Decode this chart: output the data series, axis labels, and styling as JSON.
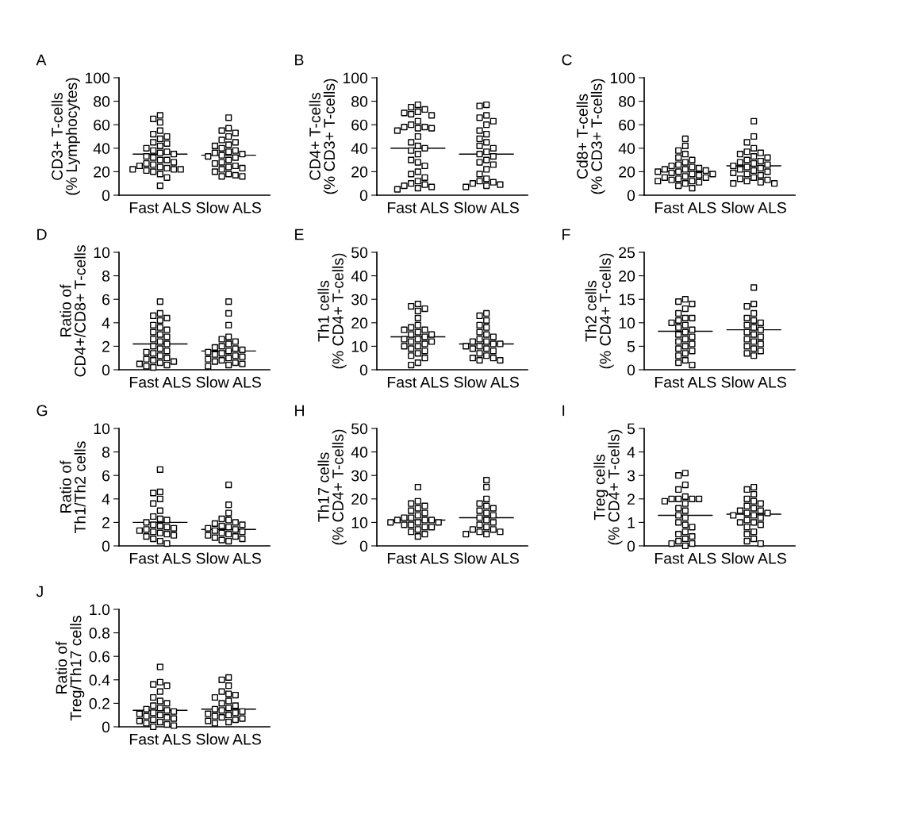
{
  "chart_data": [
    {
      "type": "scatter",
      "title": "A",
      "ylabel": "CD3+ T-cells\n(% Lymphocytes)",
      "categories": [
        "Fast ALS",
        "Slow ALS"
      ],
      "ylim": [
        0,
        100
      ],
      "yticks": [
        0,
        20,
        40,
        60,
        80,
        100
      ],
      "marker": "square",
      "grid": false,
      "ref_lines": [
        {
          "axis": "y",
          "value": 35,
          "color": "#000000"
        },
        {
          "axis": "y",
          "value": 34,
          "color": "#000000"
        }
      ],
      "series": [
        {
          "color": "#000000",
          "x": [
            "Fast ALS",
            "Fast ALS",
            "Fast ALS",
            "Fast ALS",
            "Fast ALS",
            "Fast ALS",
            "Fast ALS",
            "Fast ALS",
            "Fast ALS",
            "Fast ALS",
            "Fast ALS",
            "Fast ALS",
            "Fast ALS",
            "Fast ALS",
            "Fast ALS",
            "Fast ALS",
            "Fast ALS",
            "Fast ALS",
            "Fast ALS",
            "Fast ALS",
            "Fast ALS",
            "Fast ALS",
            "Fast ALS",
            "Fast ALS",
            "Fast ALS",
            "Fast ALS",
            "Fast ALS",
            "Fast ALS",
            "Fast ALS",
            "Fast ALS",
            "Fast ALS",
            "Fast ALS",
            "Fast ALS"
          ],
          "values": [
            68,
            65,
            62,
            55,
            52,
            50,
            48,
            45,
            44,
            42,
            40,
            38,
            37,
            36,
            35,
            33,
            32,
            30,
            30,
            28,
            27,
            26,
            25,
            24,
            23,
            22,
            22,
            22,
            21,
            20,
            18,
            15,
            8
          ]
        },
        {
          "color": "#000000",
          "x": [
            "Slow ALS",
            "Slow ALS",
            "Slow ALS",
            "Slow ALS",
            "Slow ALS",
            "Slow ALS",
            "Slow ALS",
            "Slow ALS",
            "Slow ALS",
            "Slow ALS",
            "Slow ALS",
            "Slow ALS",
            "Slow ALS",
            "Slow ALS",
            "Slow ALS",
            "Slow ALS",
            "Slow ALS",
            "Slow ALS",
            "Slow ALS",
            "Slow ALS",
            "Slow ALS",
            "Slow ALS",
            "Slow ALS",
            "Slow ALS",
            "Slow ALS",
            "Slow ALS",
            "Slow ALS",
            "Slow ALS",
            "Slow ALS"
          ],
          "values": [
            66,
            57,
            55,
            53,
            50,
            47,
            45,
            43,
            42,
            40,
            38,
            37,
            36,
            35,
            34,
            33,
            32,
            30,
            28,
            27,
            25,
            24,
            23,
            22,
            20,
            18,
            17,
            16,
            16
          ]
        }
      ]
    },
    {
      "type": "scatter",
      "title": "B",
      "ylabel": "CD4+ T-cells\n(% CD3+ T-cells)",
      "categories": [
        "Fast ALS",
        "Slow ALS"
      ],
      "ylim": [
        0,
        100
      ],
      "yticks": [
        0,
        20,
        40,
        60,
        80,
        100
      ],
      "marker": "square",
      "grid": false,
      "ref_lines": [
        {
          "axis": "y",
          "value": 40,
          "color": "#000000"
        },
        {
          "axis": "y",
          "value": 35,
          "color": "#000000"
        }
      ],
      "series": [
        {
          "color": "#000000",
          "x": [
            "Fast ALS",
            "Fast ALS",
            "Fast ALS",
            "Fast ALS",
            "Fast ALS",
            "Fast ALS",
            "Fast ALS",
            "Fast ALS",
            "Fast ALS",
            "Fast ALS",
            "Fast ALS",
            "Fast ALS",
            "Fast ALS",
            "Fast ALS",
            "Fast ALS",
            "Fast ALS",
            "Fast ALS",
            "Fast ALS",
            "Fast ALS",
            "Fast ALS",
            "Fast ALS",
            "Fast ALS",
            "Fast ALS",
            "Fast ALS",
            "Fast ALS",
            "Fast ALS",
            "Fast ALS",
            "Fast ALS",
            "Fast ALS",
            "Fast ALS",
            "Fast ALS",
            "Fast ALS",
            "Fast ALS"
          ],
          "values": [
            77,
            75,
            73,
            71,
            70,
            69,
            68,
            63,
            60,
            58,
            58,
            57,
            57,
            55,
            50,
            45,
            42,
            40,
            38,
            35,
            30,
            28,
            25,
            20,
            18,
            15,
            12,
            10,
            9,
            8,
            7,
            6,
            5
          ]
        },
        {
          "color": "#000000",
          "x": [
            "Slow ALS",
            "Slow ALS",
            "Slow ALS",
            "Slow ALS",
            "Slow ALS",
            "Slow ALS",
            "Slow ALS",
            "Slow ALS",
            "Slow ALS",
            "Slow ALS",
            "Slow ALS",
            "Slow ALS",
            "Slow ALS",
            "Slow ALS",
            "Slow ALS",
            "Slow ALS",
            "Slow ALS",
            "Slow ALS",
            "Slow ALS",
            "Slow ALS",
            "Slow ALS",
            "Slow ALS",
            "Slow ALS",
            "Slow ALS",
            "Slow ALS",
            "Slow ALS",
            "Slow ALS"
          ],
          "values": [
            77,
            76,
            68,
            66,
            63,
            60,
            55,
            52,
            48,
            45,
            42,
            40,
            37,
            35,
            33,
            30,
            28,
            26,
            22,
            18,
            14,
            12,
            11,
            10,
            9,
            8,
            7
          ]
        }
      ]
    },
    {
      "type": "scatter",
      "title": "C",
      "ylabel": "Cd8+ T-cells\n(% CD3+ T-cells)",
      "categories": [
        "Fast ALS",
        "Slow ALS"
      ],
      "ylim": [
        0,
        100
      ],
      "yticks": [
        0,
        20,
        40,
        60,
        80,
        100
      ],
      "marker": "square",
      "grid": false,
      "ref_lines": [
        {
          "axis": "y",
          "value": 20,
          "color": "#000000"
        },
        {
          "axis": "y",
          "value": 25,
          "color": "#000000"
        }
      ],
      "series": [
        {
          "color": "#000000",
          "x": [
            "Fast ALS",
            "Fast ALS",
            "Fast ALS",
            "Fast ALS",
            "Fast ALS",
            "Fast ALS",
            "Fast ALS",
            "Fast ALS",
            "Fast ALS",
            "Fast ALS",
            "Fast ALS",
            "Fast ALS",
            "Fast ALS",
            "Fast ALS",
            "Fast ALS",
            "Fast ALS",
            "Fast ALS",
            "Fast ALS",
            "Fast ALS",
            "Fast ALS",
            "Fast ALS",
            "Fast ALS",
            "Fast ALS",
            "Fast ALS",
            "Fast ALS",
            "Fast ALS",
            "Fast ALS",
            "Fast ALS",
            "Fast ALS",
            "Fast ALS",
            "Fast ALS"
          ],
          "values": [
            48,
            42,
            38,
            35,
            32,
            30,
            28,
            26,
            25,
            24,
            23,
            22,
            22,
            21,
            20,
            20,
            19,
            18,
            18,
            17,
            16,
            15,
            15,
            14,
            13,
            12,
            12,
            11,
            10,
            8,
            6
          ]
        },
        {
          "color": "#000000",
          "x": [
            "Slow ALS",
            "Slow ALS",
            "Slow ALS",
            "Slow ALS",
            "Slow ALS",
            "Slow ALS",
            "Slow ALS",
            "Slow ALS",
            "Slow ALS",
            "Slow ALS",
            "Slow ALS",
            "Slow ALS",
            "Slow ALS",
            "Slow ALS",
            "Slow ALS",
            "Slow ALS",
            "Slow ALS",
            "Slow ALS",
            "Slow ALS",
            "Slow ALS",
            "Slow ALS",
            "Slow ALS",
            "Slow ALS",
            "Slow ALS",
            "Slow ALS",
            "Slow ALS",
            "Slow ALS",
            "Slow ALS",
            "Slow ALS",
            "Slow ALS"
          ],
          "values": [
            63,
            50,
            45,
            40,
            37,
            36,
            35,
            33,
            32,
            30,
            29,
            28,
            27,
            26,
            25,
            24,
            23,
            22,
            21,
            20,
            19,
            18,
            17,
            15,
            14,
            13,
            12,
            11,
            10,
            10
          ]
        }
      ]
    },
    {
      "type": "scatter",
      "title": "D",
      "ylabel": "Ratio of\nCD4+/CD8+ T-cells",
      "categories": [
        "Fast ALS",
        "Slow ALS"
      ],
      "ylim": [
        0,
        10
      ],
      "yticks": [
        0,
        2,
        4,
        6,
        8,
        10
      ],
      "marker": "square",
      "grid": false,
      "ref_lines": [
        {
          "axis": "y",
          "value": 2.2,
          "color": "#000000"
        },
        {
          "axis": "y",
          "value": 1.6,
          "color": "#000000"
        }
      ],
      "series": [
        {
          "color": "#000000",
          "x": [
            "Fast ALS",
            "Fast ALS",
            "Fast ALS",
            "Fast ALS",
            "Fast ALS",
            "Fast ALS",
            "Fast ALS",
            "Fast ALS",
            "Fast ALS",
            "Fast ALS",
            "Fast ALS",
            "Fast ALS",
            "Fast ALS",
            "Fast ALS",
            "Fast ALS",
            "Fast ALS",
            "Fast ALS",
            "Fast ALS",
            "Fast ALS",
            "Fast ALS",
            "Fast ALS",
            "Fast ALS",
            "Fast ALS",
            "Fast ALS",
            "Fast ALS",
            "Fast ALS",
            "Fast ALS",
            "Fast ALS",
            "Fast ALS"
          ],
          "values": [
            5.8,
            4.8,
            4.6,
            4.4,
            4.2,
            3.8,
            3.6,
            3.4,
            3.2,
            3.0,
            2.8,
            2.6,
            2.4,
            2.2,
            2.0,
            1.8,
            1.6,
            1.5,
            1.4,
            1.2,
            1.0,
            0.9,
            0.8,
            0.7,
            0.6,
            0.5,
            0.4,
            0.3,
            0.2
          ]
        },
        {
          "color": "#000000",
          "x": [
            "Slow ALS",
            "Slow ALS",
            "Slow ALS",
            "Slow ALS",
            "Slow ALS",
            "Slow ALS",
            "Slow ALS",
            "Slow ALS",
            "Slow ALS",
            "Slow ALS",
            "Slow ALS",
            "Slow ALS",
            "Slow ALS",
            "Slow ALS",
            "Slow ALS",
            "Slow ALS",
            "Slow ALS",
            "Slow ALS",
            "Slow ALS",
            "Slow ALS",
            "Slow ALS",
            "Slow ALS",
            "Slow ALS",
            "Slow ALS",
            "Slow ALS"
          ],
          "values": [
            5.8,
            4.8,
            3.8,
            2.8,
            2.6,
            2.4,
            2.2,
            2.0,
            1.9,
            1.8,
            1.7,
            1.6,
            1.5,
            1.4,
            1.3,
            1.2,
            1.1,
            1.0,
            0.9,
            0.8,
            0.7,
            0.6,
            0.5,
            0.4,
            0.3
          ]
        }
      ]
    },
    {
      "type": "scatter",
      "title": "E",
      "ylabel": "Th1 cells\n(% CD4+ T-cells)",
      "categories": [
        "Fast ALS",
        "Slow ALS"
      ],
      "ylim": [
        0,
        50
      ],
      "yticks": [
        0,
        10,
        20,
        30,
        40,
        50
      ],
      "marker": "square",
      "grid": false,
      "ref_lines": [
        {
          "axis": "y",
          "value": 14,
          "color": "#000000"
        },
        {
          "axis": "y",
          "value": 11,
          "color": "#000000"
        }
      ],
      "series": [
        {
          "color": "#000000",
          "x": [
            "Fast ALS",
            "Fast ALS",
            "Fast ALS",
            "Fast ALS",
            "Fast ALS",
            "Fast ALS",
            "Fast ALS",
            "Fast ALS",
            "Fast ALS",
            "Fast ALS",
            "Fast ALS",
            "Fast ALS",
            "Fast ALS",
            "Fast ALS",
            "Fast ALS",
            "Fast ALS",
            "Fast ALS",
            "Fast ALS",
            "Fast ALS",
            "Fast ALS",
            "Fast ALS",
            "Fast ALS",
            "Fast ALS",
            "Fast ALS",
            "Fast ALS",
            "Fast ALS",
            "Fast ALS"
          ],
          "values": [
            28,
            27,
            26,
            25,
            22,
            19,
            18,
            17,
            17,
            16,
            15,
            15,
            14,
            13,
            13,
            12,
            12,
            11,
            10,
            10,
            9,
            8,
            7,
            6,
            5,
            3,
            2
          ]
        },
        {
          "color": "#000000",
          "x": [
            "Slow ALS",
            "Slow ALS",
            "Slow ALS",
            "Slow ALS",
            "Slow ALS",
            "Slow ALS",
            "Slow ALS",
            "Slow ALS",
            "Slow ALS",
            "Slow ALS",
            "Slow ALS",
            "Slow ALS",
            "Slow ALS",
            "Slow ALS",
            "Slow ALS",
            "Slow ALS",
            "Slow ALS",
            "Slow ALS",
            "Slow ALS",
            "Slow ALS",
            "Slow ALS",
            "Slow ALS",
            "Slow ALS",
            "Slow ALS"
          ],
          "values": [
            24,
            23,
            21,
            19,
            18,
            16,
            15,
            14,
            13,
            12,
            12,
            11,
            11,
            10,
            10,
            9,
            9,
            8,
            7,
            6,
            5,
            5,
            4,
            4
          ]
        }
      ]
    },
    {
      "type": "scatter",
      "title": "F",
      "ylabel": "Th2 cells\n(% CD4+ T-cells)",
      "categories": [
        "Fast ALS",
        "Slow ALS"
      ],
      "ylim": [
        0,
        25
      ],
      "yticks": [
        0,
        5,
        10,
        15,
        20,
        25
      ],
      "marker": "square",
      "grid": false,
      "ref_lines": [
        {
          "axis": "y",
          "value": 8.2,
          "color": "#000000"
        },
        {
          "axis": "y",
          "value": 8.5,
          "color": "#000000"
        }
      ],
      "series": [
        {
          "color": "#000000",
          "x": [
            "Fast ALS",
            "Fast ALS",
            "Fast ALS",
            "Fast ALS",
            "Fast ALS",
            "Fast ALS",
            "Fast ALS",
            "Fast ALS",
            "Fast ALS",
            "Fast ALS",
            "Fast ALS",
            "Fast ALS",
            "Fast ALS",
            "Fast ALS",
            "Fast ALS",
            "Fast ALS",
            "Fast ALS",
            "Fast ALS",
            "Fast ALS",
            "Fast ALS",
            "Fast ALS",
            "Fast ALS",
            "Fast ALS",
            "Fast ALS",
            "Fast ALS",
            "Fast ALS"
          ],
          "values": [
            15,
            14.5,
            14,
            13,
            12,
            11,
            11,
            10.5,
            10,
            9.5,
            9,
            8.5,
            8,
            7.5,
            7,
            6.5,
            6,
            5.5,
            5,
            4.5,
            4,
            3.5,
            3,
            2,
            1.5,
            1
          ]
        },
        {
          "color": "#000000",
          "x": [
            "Slow ALS",
            "Slow ALS",
            "Slow ALS",
            "Slow ALS",
            "Slow ALS",
            "Slow ALS",
            "Slow ALS",
            "Slow ALS",
            "Slow ALS",
            "Slow ALS",
            "Slow ALS",
            "Slow ALS",
            "Slow ALS",
            "Slow ALS",
            "Slow ALS",
            "Slow ALS",
            "Slow ALS",
            "Slow ALS",
            "Slow ALS",
            "Slow ALS",
            "Slow ALS"
          ],
          "values": [
            17.5,
            14,
            13.5,
            12,
            11,
            10.5,
            10,
            9.5,
            9,
            8.5,
            8,
            7.5,
            7,
            6.5,
            6,
            5.5,
            5,
            4.5,
            4,
            3.5,
            3
          ]
        }
      ]
    },
    {
      "type": "scatter",
      "title": "G",
      "ylabel": "Ratio of\nTh1/Th2 cells",
      "categories": [
        "Fast ALS",
        "Slow ALS"
      ],
      "ylim": [
        0,
        10
      ],
      "yticks": [
        0,
        2,
        4,
        6,
        8,
        10
      ],
      "marker": "square",
      "grid": false,
      "ref_lines": [
        {
          "axis": "y",
          "value": 2.0,
          "color": "#000000"
        },
        {
          "axis": "y",
          "value": 1.4,
          "color": "#000000"
        }
      ],
      "series": [
        {
          "color": "#000000",
          "x": [
            "Fast ALS",
            "Fast ALS",
            "Fast ALS",
            "Fast ALS",
            "Fast ALS",
            "Fast ALS",
            "Fast ALS",
            "Fast ALS",
            "Fast ALS",
            "Fast ALS",
            "Fast ALS",
            "Fast ALS",
            "Fast ALS",
            "Fast ALS",
            "Fast ALS",
            "Fast ALS",
            "Fast ALS",
            "Fast ALS",
            "Fast ALS",
            "Fast ALS",
            "Fast ALS",
            "Fast ALS",
            "Fast ALS",
            "Fast ALS"
          ],
          "values": [
            6.5,
            4.6,
            4.5,
            4.0,
            3.6,
            3.0,
            2.5,
            2.3,
            2.2,
            2.0,
            1.8,
            1.7,
            1.6,
            1.5,
            1.4,
            1.3,
            1.2,
            1.1,
            1.0,
            0.9,
            0.8,
            0.6,
            0.4,
            0.2
          ]
        },
        {
          "color": "#000000",
          "x": [
            "Slow ALS",
            "Slow ALS",
            "Slow ALS",
            "Slow ALS",
            "Slow ALS",
            "Slow ALS",
            "Slow ALS",
            "Slow ALS",
            "Slow ALS",
            "Slow ALS",
            "Slow ALS",
            "Slow ALS",
            "Slow ALS",
            "Slow ALS",
            "Slow ALS",
            "Slow ALS",
            "Slow ALS",
            "Slow ALS",
            "Slow ALS",
            "Slow ALS",
            "Slow ALS",
            "Slow ALS"
          ],
          "values": [
            5.2,
            3.5,
            2.8,
            2.3,
            2.2,
            2.0,
            1.9,
            1.8,
            1.7,
            1.6,
            1.5,
            1.4,
            1.3,
            1.2,
            1.1,
            1.0,
            0.9,
            0.8,
            0.7,
            0.6,
            0.5,
            0.4
          ]
        }
      ]
    },
    {
      "type": "scatter",
      "title": "H",
      "ylabel": "Th17 cells\n(% CD4+ T-cells)",
      "categories": [
        "Fast ALS",
        "Slow ALS"
      ],
      "ylim": [
        0,
        50
      ],
      "yticks": [
        0,
        10,
        20,
        30,
        40,
        50
      ],
      "marker": "square",
      "grid": false,
      "ref_lines": [
        {
          "axis": "y",
          "value": 11,
          "color": "#000000"
        },
        {
          "axis": "y",
          "value": 12,
          "color": "#000000"
        }
      ],
      "series": [
        {
          "color": "#000000",
          "x": [
            "Fast ALS",
            "Fast ALS",
            "Fast ALS",
            "Fast ALS",
            "Fast ALS",
            "Fast ALS",
            "Fast ALS",
            "Fast ALS",
            "Fast ALS",
            "Fast ALS",
            "Fast ALS",
            "Fast ALS",
            "Fast ALS",
            "Fast ALS",
            "Fast ALS",
            "Fast ALS",
            "Fast ALS",
            "Fast ALS",
            "Fast ALS",
            "Fast ALS",
            "Fast ALS",
            "Fast ALS",
            "Fast ALS",
            "Fast ALS"
          ],
          "values": [
            25,
            19,
            18,
            17,
            16,
            15,
            14,
            13,
            12,
            12,
            11,
            11,
            11,
            10,
            10,
            10,
            9,
            9,
            8,
            8,
            7,
            6,
            5,
            4
          ]
        },
        {
          "color": "#000000",
          "x": [
            "Slow ALS",
            "Slow ALS",
            "Slow ALS",
            "Slow ALS",
            "Slow ALS",
            "Slow ALS",
            "Slow ALS",
            "Slow ALS",
            "Slow ALS",
            "Slow ALS",
            "Slow ALS",
            "Slow ALS",
            "Slow ALS",
            "Slow ALS",
            "Slow ALS",
            "Slow ALS",
            "Slow ALS",
            "Slow ALS",
            "Slow ALS",
            "Slow ALS"
          ],
          "values": [
            28,
            25,
            20,
            18,
            17,
            16,
            15,
            14,
            13,
            12,
            11,
            10,
            9,
            8,
            7,
            7,
            6,
            6,
            5,
            5
          ]
        }
      ]
    },
    {
      "type": "scatter",
      "title": "I",
      "ylabel": "Treg cells\n(% CD4+ T-cells)",
      "categories": [
        "Fast ALS",
        "Slow ALS"
      ],
      "ylim": [
        0,
        5
      ],
      "yticks": [
        0,
        1,
        2,
        3,
        4,
        5
      ],
      "marker": "square",
      "grid": false,
      "ref_lines": [
        {
          "axis": "y",
          "value": 1.3,
          "color": "#000000"
        },
        {
          "axis": "y",
          "value": 1.35,
          "color": "#000000"
        }
      ],
      "series": [
        {
          "color": "#000000",
          "x": [
            "Fast ALS",
            "Fast ALS",
            "Fast ALS",
            "Fast ALS",
            "Fast ALS",
            "Fast ALS",
            "Fast ALS",
            "Fast ALS",
            "Fast ALS",
            "Fast ALS",
            "Fast ALS",
            "Fast ALS",
            "Fast ALS",
            "Fast ALS",
            "Fast ALS",
            "Fast ALS",
            "Fast ALS",
            "Fast ALS",
            "Fast ALS",
            "Fast ALS",
            "Fast ALS",
            "Fast ALS",
            "Fast ALS",
            "Fast ALS",
            "Fast ALS",
            "Fast ALS"
          ],
          "values": [
            3.1,
            3.0,
            2.6,
            2.4,
            2.1,
            2.0,
            2.0,
            2.0,
            2.0,
            1.9,
            1.8,
            1.6,
            1.5,
            1.3,
            1.2,
            1.0,
            0.9,
            0.8,
            0.6,
            0.5,
            0.4,
            0.3,
            0.2,
            0.1,
            0.1,
            0.0
          ]
        },
        {
          "color": "#000000",
          "x": [
            "Slow ALS",
            "Slow ALS",
            "Slow ALS",
            "Slow ALS",
            "Slow ALS",
            "Slow ALS",
            "Slow ALS",
            "Slow ALS",
            "Slow ALS",
            "Slow ALS",
            "Slow ALS",
            "Slow ALS",
            "Slow ALS",
            "Slow ALS",
            "Slow ALS",
            "Slow ALS",
            "Slow ALS",
            "Slow ALS",
            "Slow ALS",
            "Slow ALS",
            "Slow ALS",
            "Slow ALS",
            "Slow ALS",
            "Slow ALS",
            "Slow ALS"
          ],
          "values": [
            2.5,
            2.4,
            2.2,
            2.0,
            1.9,
            1.8,
            1.7,
            1.6,
            1.5,
            1.5,
            1.4,
            1.4,
            1.3,
            1.3,
            1.2,
            1.1,
            1.0,
            1.0,
            0.9,
            0.8,
            0.6,
            0.5,
            0.3,
            0.2,
            0.1
          ]
        }
      ]
    },
    {
      "type": "scatter",
      "title": "J",
      "ylabel": "Ratio of\nTreg/Th17 cells",
      "categories": [
        "Fast ALS",
        "Slow ALS"
      ],
      "ylim": [
        0,
        1.0
      ],
      "yticks": [
        {
          "value": 0,
          "label": "0"
        },
        0.2,
        0.4,
        0.6,
        0.8,
        {
          "value": 1.0,
          "label": "1.0"
        }
      ],
      "marker": "square",
      "grid": false,
      "ref_lines": [
        {
          "axis": "y",
          "value": 0.14,
          "color": "#000000"
        },
        {
          "axis": "y",
          "value": 0.15,
          "color": "#000000"
        }
      ],
      "series": [
        {
          "color": "#000000",
          "x": [
            "Fast ALS",
            "Fast ALS",
            "Fast ALS",
            "Fast ALS",
            "Fast ALS",
            "Fast ALS",
            "Fast ALS",
            "Fast ALS",
            "Fast ALS",
            "Fast ALS",
            "Fast ALS",
            "Fast ALS",
            "Fast ALS",
            "Fast ALS",
            "Fast ALS",
            "Fast ALS",
            "Fast ALS",
            "Fast ALS",
            "Fast ALS",
            "Fast ALS",
            "Fast ALS",
            "Fast ALS",
            "Fast ALS",
            "Fast ALS",
            "Fast ALS",
            "Fast ALS"
          ],
          "values": [
            0.51,
            0.38,
            0.36,
            0.35,
            0.3,
            0.25,
            0.22,
            0.2,
            0.18,
            0.16,
            0.15,
            0.14,
            0.13,
            0.12,
            0.11,
            0.1,
            0.09,
            0.08,
            0.07,
            0.06,
            0.05,
            0.04,
            0.03,
            0.02,
            0.01,
            0.0
          ]
        },
        {
          "color": "#000000",
          "x": [
            "Slow ALS",
            "Slow ALS",
            "Slow ALS",
            "Slow ALS",
            "Slow ALS",
            "Slow ALS",
            "Slow ALS",
            "Slow ALS",
            "Slow ALS",
            "Slow ALS",
            "Slow ALS",
            "Slow ALS",
            "Slow ALS",
            "Slow ALS",
            "Slow ALS",
            "Slow ALS",
            "Slow ALS",
            "Slow ALS",
            "Slow ALS",
            "Slow ALS",
            "Slow ALS",
            "Slow ALS",
            "Slow ALS",
            "Slow ALS"
          ],
          "values": [
            0.42,
            0.4,
            0.35,
            0.3,
            0.28,
            0.27,
            0.25,
            0.22,
            0.2,
            0.18,
            0.16,
            0.15,
            0.14,
            0.13,
            0.12,
            0.11,
            0.1,
            0.09,
            0.08,
            0.07,
            0.06,
            0.05,
            0.04,
            0.03
          ]
        }
      ]
    }
  ]
}
